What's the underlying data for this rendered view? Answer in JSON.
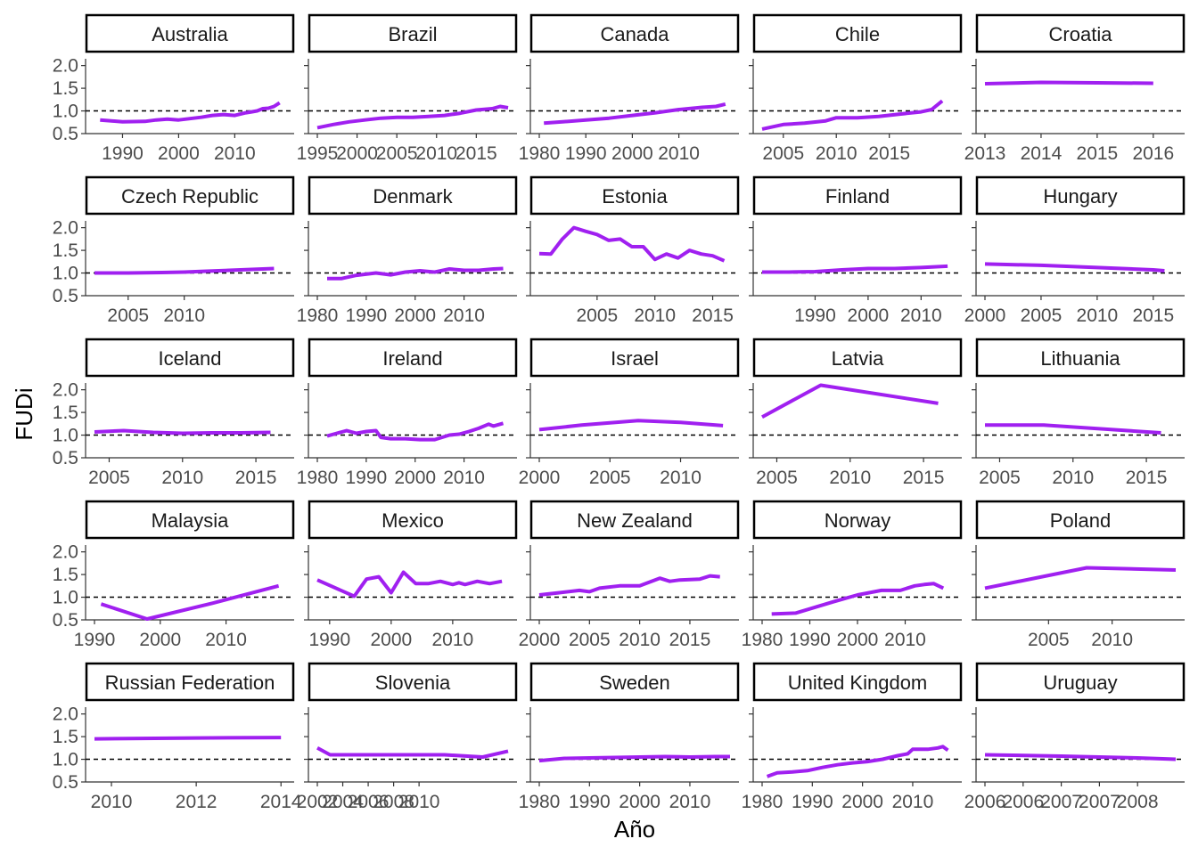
{
  "xlabel": "Año",
  "ylabel": "FUDi",
  "colors": {
    "line": "#a020f0",
    "reference": "#000000",
    "axis": "#333333"
  },
  "chart_data": {
    "type": "line",
    "title": "",
    "xlabel": "Año",
    "ylabel": "FUDi",
    "ylim": [
      0.5,
      2.0
    ],
    "yticks": [
      0.5,
      1.0,
      1.5,
      2.0
    ],
    "reference_line": 1.0,
    "grid": false,
    "panels": [
      {
        "name": "Australia",
        "xlim": [
          1985,
          2019
        ],
        "xticks": [
          1990,
          2000,
          2010
        ],
        "xtick_labels": [
          "1990",
          "2000",
          "2010"
        ],
        "x": [
          1986,
          1990,
          1994,
          1996,
          1998,
          2000,
          2002,
          2004,
          2006,
          2008,
          2010,
          2012,
          2013,
          2014,
          2015,
          2016,
          2017,
          2018
        ],
        "y": [
          0.8,
          0.76,
          0.77,
          0.8,
          0.82,
          0.8,
          0.83,
          0.86,
          0.9,
          0.92,
          0.9,
          0.96,
          0.98,
          1.0,
          1.05,
          1.06,
          1.1,
          1.18
        ]
      },
      {
        "name": "Brazil",
        "xlim": [
          1995,
          2019
        ],
        "xticks": [
          1995,
          2000,
          2005,
          2010,
          2015
        ],
        "xtick_labels": [
          "1995",
          "2000",
          "2005",
          "2010",
          "2015"
        ],
        "x": [
          1995,
          1997,
          1999,
          2001,
          2003,
          2005,
          2007,
          2009,
          2011,
          2013,
          2015,
          2017,
          2018,
          2019
        ],
        "y": [
          0.63,
          0.7,
          0.76,
          0.8,
          0.84,
          0.86,
          0.86,
          0.88,
          0.9,
          0.95,
          1.02,
          1.05,
          1.1,
          1.07
        ]
      },
      {
        "name": "Canada",
        "xlim": [
          1980,
          2021
        ],
        "xticks": [
          1980,
          1990,
          2000,
          2010
        ],
        "xtick_labels": [
          "1980",
          "1990",
          "2000",
          "2010"
        ],
        "x": [
          1981,
          1985,
          1990,
          1995,
          2000,
          2005,
          2010,
          2015,
          2018,
          2020
        ],
        "y": [
          0.73,
          0.76,
          0.8,
          0.84,
          0.9,
          0.96,
          1.03,
          1.08,
          1.1,
          1.15
        ]
      },
      {
        "name": "Chile",
        "xlim": [
          2003,
          2021
        ],
        "xticks": [
          2005,
          2010,
          2015
        ],
        "xtick_labels": [
          "2005",
          "2010",
          "2015"
        ],
        "x": [
          2003,
          2005,
          2007,
          2009,
          2010,
          2012,
          2014,
          2016,
          2018,
          2019,
          2020
        ],
        "y": [
          0.6,
          0.7,
          0.73,
          0.78,
          0.85,
          0.85,
          0.88,
          0.93,
          0.98,
          1.03,
          1.22
        ]
      },
      {
        "name": "Croatia",
        "xlim": [
          2013,
          2016.4
        ],
        "xticks": [
          2013,
          2014,
          2015,
          2016
        ],
        "xtick_labels": [
          "2013",
          "2014",
          "2015",
          "2016"
        ],
        "x": [
          2013,
          2014,
          2015,
          2016
        ],
        "y": [
          1.6,
          1.63,
          1.62,
          1.61
        ]
      },
      {
        "name": "Czech Republic",
        "xlim": [
          2002,
          2019
        ],
        "xticks": [
          2005,
          2010
        ],
        "xtick_labels": [
          "2005",
          "2010"
        ],
        "x": [
          2002,
          2005,
          2008,
          2010,
          2012,
          2014,
          2016,
          2018
        ],
        "y": [
          1.0,
          1.0,
          1.01,
          1.02,
          1.04,
          1.06,
          1.08,
          1.1
        ]
      },
      {
        "name": "Denmark",
        "xlim": [
          1980,
          2019
        ],
        "xticks": [
          1980,
          1990,
          2000,
          2010
        ],
        "xtick_labels": [
          "1980",
          "1990",
          "2000",
          "2010"
        ],
        "x": [
          1982,
          1985,
          1988,
          1992,
          1995,
          1998,
          2001,
          2004,
          2007,
          2010,
          2013,
          2016,
          2018
        ],
        "y": [
          0.88,
          0.88,
          0.95,
          1.0,
          0.96,
          1.02,
          1.05,
          1.02,
          1.09,
          1.06,
          1.06,
          1.09,
          1.1
        ]
      },
      {
        "name": "Estonia",
        "xlim": [
          2000,
          2016.5
        ],
        "xticks": [
          2005,
          2010,
          2015
        ],
        "xtick_labels": [
          "2005",
          "2010",
          "2015"
        ],
        "x": [
          2000,
          2001,
          2002,
          2003,
          2004,
          2005,
          2006,
          2007,
          2008,
          2009,
          2010,
          2011,
          2012,
          2013,
          2014,
          2015,
          2016
        ],
        "y": [
          1.43,
          1.42,
          1.75,
          2.0,
          1.92,
          1.85,
          1.72,
          1.75,
          1.58,
          1.58,
          1.3,
          1.42,
          1.33,
          1.5,
          1.42,
          1.38,
          1.27
        ]
      },
      {
        "name": "Finland",
        "xlim": [
          1980,
          2016
        ],
        "xticks": [
          1990,
          2000,
          2010
        ],
        "xtick_labels": [
          "1990",
          "2000",
          "2010"
        ],
        "x": [
          1980,
          1985,
          1990,
          1995,
          2000,
          2005,
          2010,
          2015
        ],
        "y": [
          1.02,
          1.02,
          1.03,
          1.07,
          1.1,
          1.1,
          1.12,
          1.15
        ]
      },
      {
        "name": "Hungary",
        "xlim": [
          2000,
          2017
        ],
        "xticks": [
          2000,
          2005,
          2010,
          2015
        ],
        "xtick_labels": [
          "2000",
          "2005",
          "2010",
          "2015"
        ],
        "x": [
          2000,
          2005,
          2010,
          2015,
          2016
        ],
        "y": [
          1.2,
          1.17,
          1.12,
          1.07,
          1.05
        ]
      },
      {
        "name": "Iceland",
        "xlim": [
          2004,
          2017
        ],
        "xticks": [
          2005,
          2010,
          2015
        ],
        "xtick_labels": [
          "2005",
          "2010",
          "2015"
        ],
        "x": [
          2004,
          2006,
          2008,
          2010,
          2012,
          2014,
          2016
        ],
        "y": [
          1.07,
          1.1,
          1.06,
          1.04,
          1.05,
          1.05,
          1.06
        ]
      },
      {
        "name": "Ireland",
        "xlim": [
          1980,
          2019
        ],
        "xticks": [
          1980,
          1990,
          2000,
          2010
        ],
        "xtick_labels": [
          "1980",
          "1990",
          "2000",
          "2010"
        ],
        "x": [
          1982,
          1984,
          1986,
          1988,
          1990,
          1992,
          1993,
          1995,
          1998,
          2001,
          2004,
          2007,
          2009,
          2011,
          2013,
          2015,
          2016,
          2018
        ],
        "y": [
          0.98,
          1.04,
          1.1,
          1.04,
          1.08,
          1.1,
          0.95,
          0.92,
          0.92,
          0.9,
          0.9,
          1.0,
          1.02,
          1.08,
          1.15,
          1.24,
          1.2,
          1.26
        ]
      },
      {
        "name": "Israel",
        "xlim": [
          2000,
          2013.5
        ],
        "xticks": [
          2000,
          2005,
          2010
        ],
        "xtick_labels": [
          "2000",
          "2005",
          "2010"
        ],
        "x": [
          2000,
          2003,
          2007,
          2010,
          2013
        ],
        "y": [
          1.12,
          1.22,
          1.32,
          1.28,
          1.21
        ]
      },
      {
        "name": "Latvia",
        "xlim": [
          2004,
          2017
        ],
        "xticks": [
          2005,
          2010,
          2015
        ],
        "xtick_labels": [
          "2005",
          "2010",
          "2015"
        ],
        "x": [
          2004,
          2008,
          2016
        ],
        "y": [
          1.4,
          2.1,
          1.7
        ]
      },
      {
        "name": "Lithuania",
        "xlim": [
          2004,
          2017
        ],
        "xticks": [
          2005,
          2010,
          2015
        ],
        "xtick_labels": [
          "2005",
          "2010",
          "2015"
        ],
        "x": [
          2004,
          2008,
          2016
        ],
        "y": [
          1.22,
          1.22,
          1.05
        ]
      },
      {
        "name": "Malaysia",
        "xlim": [
          1990,
          2019
        ],
        "xticks": [
          1990,
          2000,
          2010
        ],
        "xtick_labels": [
          "1990",
          "2000",
          "2010"
        ],
        "x": [
          1991,
          1998,
          2008,
          2018
        ],
        "y": [
          0.85,
          0.52,
          0.87,
          1.25
        ]
      },
      {
        "name": "Mexico",
        "xlim": [
          1988,
          2019
        ],
        "xticks": [
          1990,
          2000,
          2010
        ],
        "xtick_labels": [
          "1990",
          "2000",
          "2010"
        ],
        "x": [
          1988,
          1994,
          1996,
          1998,
          2000,
          2002,
          2004,
          2006,
          2008,
          2010,
          2011,
          2012,
          2014,
          2016,
          2018
        ],
        "y": [
          1.38,
          1.02,
          1.4,
          1.45,
          1.1,
          1.55,
          1.3,
          1.3,
          1.35,
          1.28,
          1.32,
          1.28,
          1.35,
          1.3,
          1.35
        ]
      },
      {
        "name": "New Zealand",
        "xlim": [
          2000,
          2019
        ],
        "xticks": [
          2000,
          2005,
          2010,
          2015
        ],
        "xtick_labels": [
          "2000",
          "2005",
          "2010",
          "2015"
        ],
        "x": [
          2000,
          2002,
          2004,
          2005,
          2006,
          2008,
          2010,
          2012,
          2013,
          2014,
          2016,
          2017,
          2018
        ],
        "y": [
          1.05,
          1.1,
          1.15,
          1.12,
          1.2,
          1.25,
          1.25,
          1.42,
          1.35,
          1.38,
          1.4,
          1.47,
          1.45
        ]
      },
      {
        "name": "Norway",
        "xlim": [
          1980,
          2020
        ],
        "xticks": [
          1980,
          1990,
          2000,
          2010
        ],
        "xtick_labels": [
          "1980",
          "1990",
          "2000",
          "2010"
        ],
        "x": [
          1982,
          1987,
          1995,
          2000,
          2005,
          2009,
          2012,
          2014,
          2016,
          2018
        ],
        "y": [
          0.63,
          0.65,
          0.9,
          1.05,
          1.15,
          1.15,
          1.25,
          1.28,
          1.3,
          1.2
        ]
      },
      {
        "name": "Poland",
        "xlim": [
          2000,
          2015
        ],
        "xticks": [
          2005,
          2010
        ],
        "xtick_labels": [
          "2005",
          "2010"
        ],
        "x": [
          2000,
          2008,
          2015
        ],
        "y": [
          1.2,
          1.65,
          1.6
        ]
      },
      {
        "name": "Russian Federation",
        "xlim": [
          2009.6,
          2014.1
        ],
        "xticks": [
          2010,
          2012,
          2014
        ],
        "xtick_labels": [
          "2010",
          "2012",
          "2014"
        ],
        "x": [
          2009.6,
          2012,
          2014
        ],
        "y": [
          1.45,
          1.47,
          1.48
        ]
      },
      {
        "name": "Slovenia",
        "xlim": [
          2002,
          2017
        ],
        "xticks": [
          2002,
          2004,
          2006,
          2008,
          2010
        ],
        "xtick_labels": [
          "2002",
          "2004",
          "2006",
          "2008",
          "2010"
        ],
        "x": [
          2002,
          2003,
          2006,
          2009,
          2012,
          2015,
          2017
        ],
        "y": [
          1.25,
          1.1,
          1.1,
          1.1,
          1.1,
          1.05,
          1.18
        ]
      },
      {
        "name": "Sweden",
        "xlim": [
          1980,
          2018
        ],
        "xticks": [
          1980,
          1990,
          2000,
          2010
        ],
        "xtick_labels": [
          "1980",
          "1990",
          "2000",
          "2010"
        ],
        "x": [
          1980,
          1985,
          1990,
          1995,
          2000,
          2005,
          2010,
          2015,
          2018
        ],
        "y": [
          0.97,
          1.02,
          1.03,
          1.04,
          1.05,
          1.06,
          1.05,
          1.06,
          1.06
        ]
      },
      {
        "name": "United Kingdom",
        "xlim": [
          1980,
          2018
        ],
        "xticks": [
          1980,
          1990,
          2000,
          2010
        ],
        "xtick_labels": [
          "1980",
          "1990",
          "2000",
          "2010"
        ],
        "x": [
          1981,
          1983,
          1986,
          1989,
          1992,
          1995,
          1998,
          2001,
          2004,
          2007,
          2009,
          2010,
          2012,
          2013,
          2015,
          2016,
          2017
        ],
        "y": [
          0.62,
          0.7,
          0.72,
          0.75,
          0.82,
          0.88,
          0.92,
          0.95,
          1.0,
          1.08,
          1.12,
          1.22,
          1.22,
          1.22,
          1.25,
          1.28,
          1.2
        ]
      },
      {
        "name": "Uruguay",
        "xlim": [
          2006,
          2008.5
        ],
        "xticks": [
          2006,
          2006.5,
          2007,
          2007.5,
          2008
        ],
        "xtick_labels": [
          "2006",
          "2006",
          "2007",
          "2007",
          "2008"
        ],
        "x": [
          2006,
          2007,
          2008,
          2008.5
        ],
        "y": [
          1.1,
          1.07,
          1.03,
          1.0
        ]
      }
    ]
  }
}
